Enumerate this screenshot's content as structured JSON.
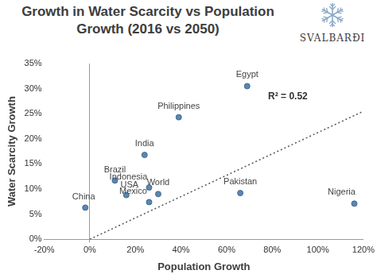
{
  "chart_data": {
    "type": "scatter",
    "title": "Growth in Water Scarcity vs Population Growth (2016 vs 2050)",
    "logo": "SVALBARÐI",
    "x_label": "Population Growth",
    "y_label": "Water Scarcity Growth",
    "labels": [
      "China",
      "Brazil",
      "USA",
      "India",
      "Indonesia",
      "Mexico",
      "World",
      "Philippines",
      "Pakistan",
      "Egypt",
      "Nigeria"
    ],
    "x": [
      -2,
      11,
      16,
      24,
      26,
      26,
      30,
      39,
      66,
      69,
      116
    ],
    "y": [
      6.3,
      11.7,
      8.8,
      16.8,
      10.3,
      7.4,
      9,
      24.3,
      9.2,
      30.5,
      7.1
    ],
    "color": "#5b86b0",
    "marker": "circle",
    "trend_line": {
      "x": [
        0,
        120
      ],
      "y": [
        0,
        25.5
      ],
      "line_style": "dotted",
      "color": "#555555"
    },
    "annotation": "R² = 0.52",
    "xlim": [
      -20,
      120
    ],
    "xticks": [
      {
        "value": -20,
        "label": "-20%"
      },
      {
        "value": 0,
        "label": "0%"
      },
      {
        "value": 20,
        "label": "20%"
      },
      {
        "value": 40,
        "label": "40%"
      },
      {
        "value": 60,
        "label": "60%"
      },
      {
        "value": 80,
        "label": "80%"
      },
      {
        "value": 100,
        "label": "100%"
      },
      {
        "value": 120,
        "label": "120%"
      }
    ],
    "ylim": [
      0,
      35
    ],
    "yticks": [
      {
        "value": 0,
        "label": "0%"
      },
      {
        "value": 5,
        "label": "5%"
      },
      {
        "value": 10,
        "label": "10%"
      },
      {
        "value": 15,
        "label": "15%"
      },
      {
        "value": 20,
        "label": "20%"
      },
      {
        "value": 25,
        "label": "25%"
      },
      {
        "value": 30,
        "label": "30%"
      },
      {
        "value": 35,
        "label": "35%"
      }
    ],
    "grid": false
  }
}
